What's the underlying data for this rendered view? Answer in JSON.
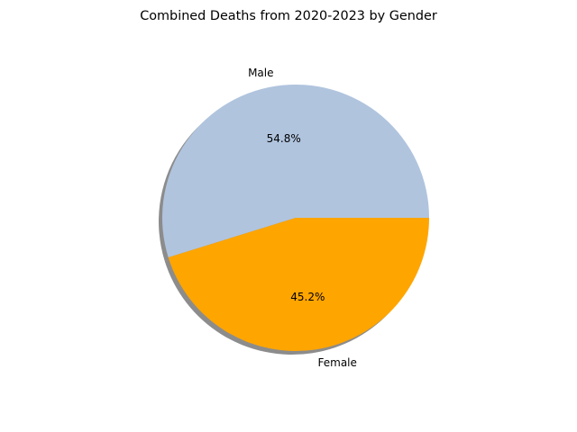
{
  "chart_data": {
    "type": "pie",
    "title": "Combined Deaths from 2020-2023 by Gender",
    "slices": [
      {
        "label": "Male",
        "value": 54.8,
        "pct_label": "54.8%",
        "color": "#b0c4de"
      },
      {
        "label": "Female",
        "value": 45.2,
        "pct_label": "45.2%",
        "color": "#ffa500"
      }
    ],
    "start_angle_deg": 0,
    "shadow": true
  }
}
